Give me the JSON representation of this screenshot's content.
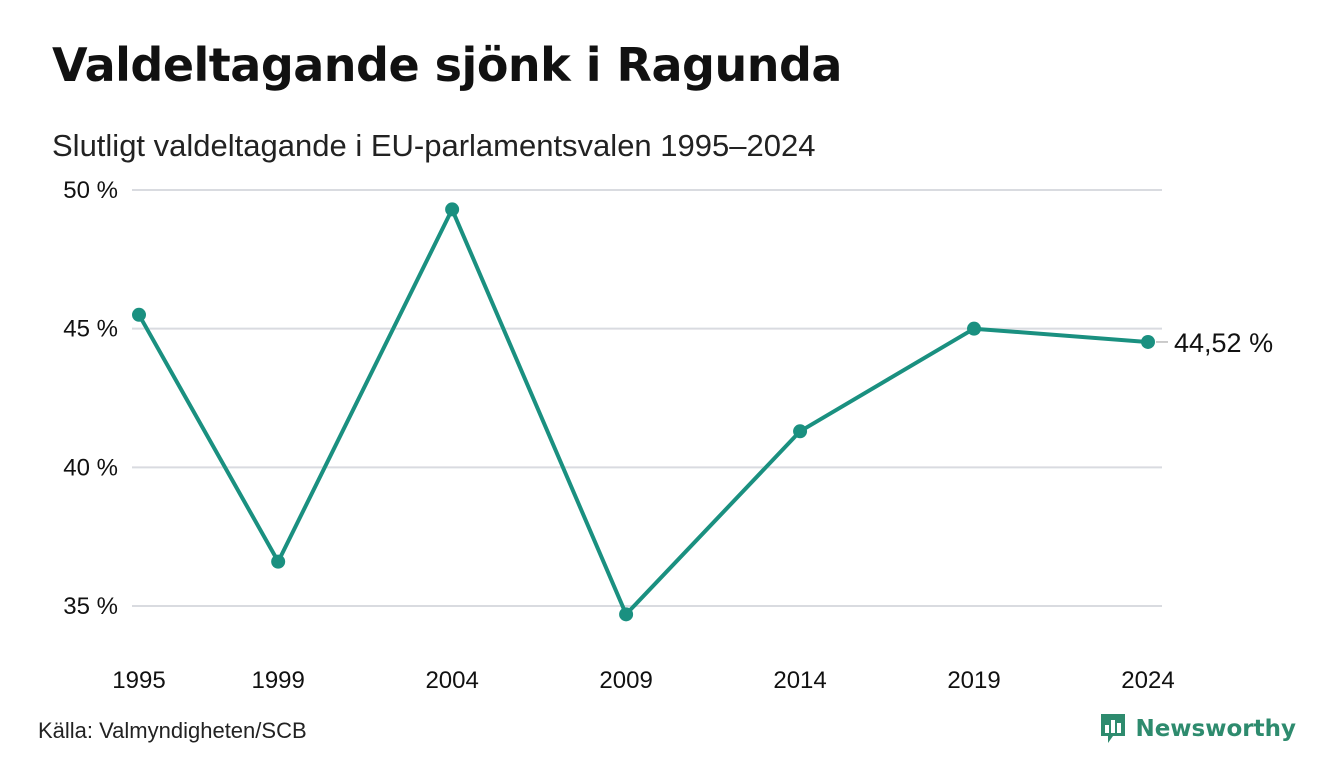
{
  "header": {
    "title": "Valdeltagande sjönk i Ragunda",
    "subtitle": "Slutligt valdeltagande i EU-parlamentsvalen 1995–2024"
  },
  "footer": {
    "source": "Källa: Valmyndigheten/SCB",
    "brand": "Newsworthy",
    "brand_icon": "bar-chart-speech-bubble-icon"
  },
  "colors": {
    "line": "#1a9080",
    "grid": "#d9dbe0",
    "brand": "#2e8b6e"
  },
  "chart_data": {
    "type": "line",
    "title": "Valdeltagande sjönk i Ragunda",
    "subtitle": "Slutligt valdeltagande i EU-parlamentsvalen 1995–2024",
    "xlabel": "",
    "ylabel": "",
    "x": [
      1995,
      1999,
      2004,
      2009,
      2014,
      2019,
      2024
    ],
    "x_tick_labels": [
      "1995",
      "1999",
      "2004",
      "2009",
      "2014",
      "2019",
      "2024"
    ],
    "series": [
      {
        "values": [
          45.5,
          36.6,
          49.3,
          34.7,
          41.3,
          45.0,
          44.52
        ]
      }
    ],
    "ylim": [
      35,
      50
    ],
    "y_ticks": [
      35,
      40,
      45,
      50
    ],
    "y_tick_labels": [
      "35 %",
      "40 %",
      "45 %",
      "50 %"
    ],
    "end_label": "44,52 %",
    "grid": true,
    "legend": "none"
  }
}
